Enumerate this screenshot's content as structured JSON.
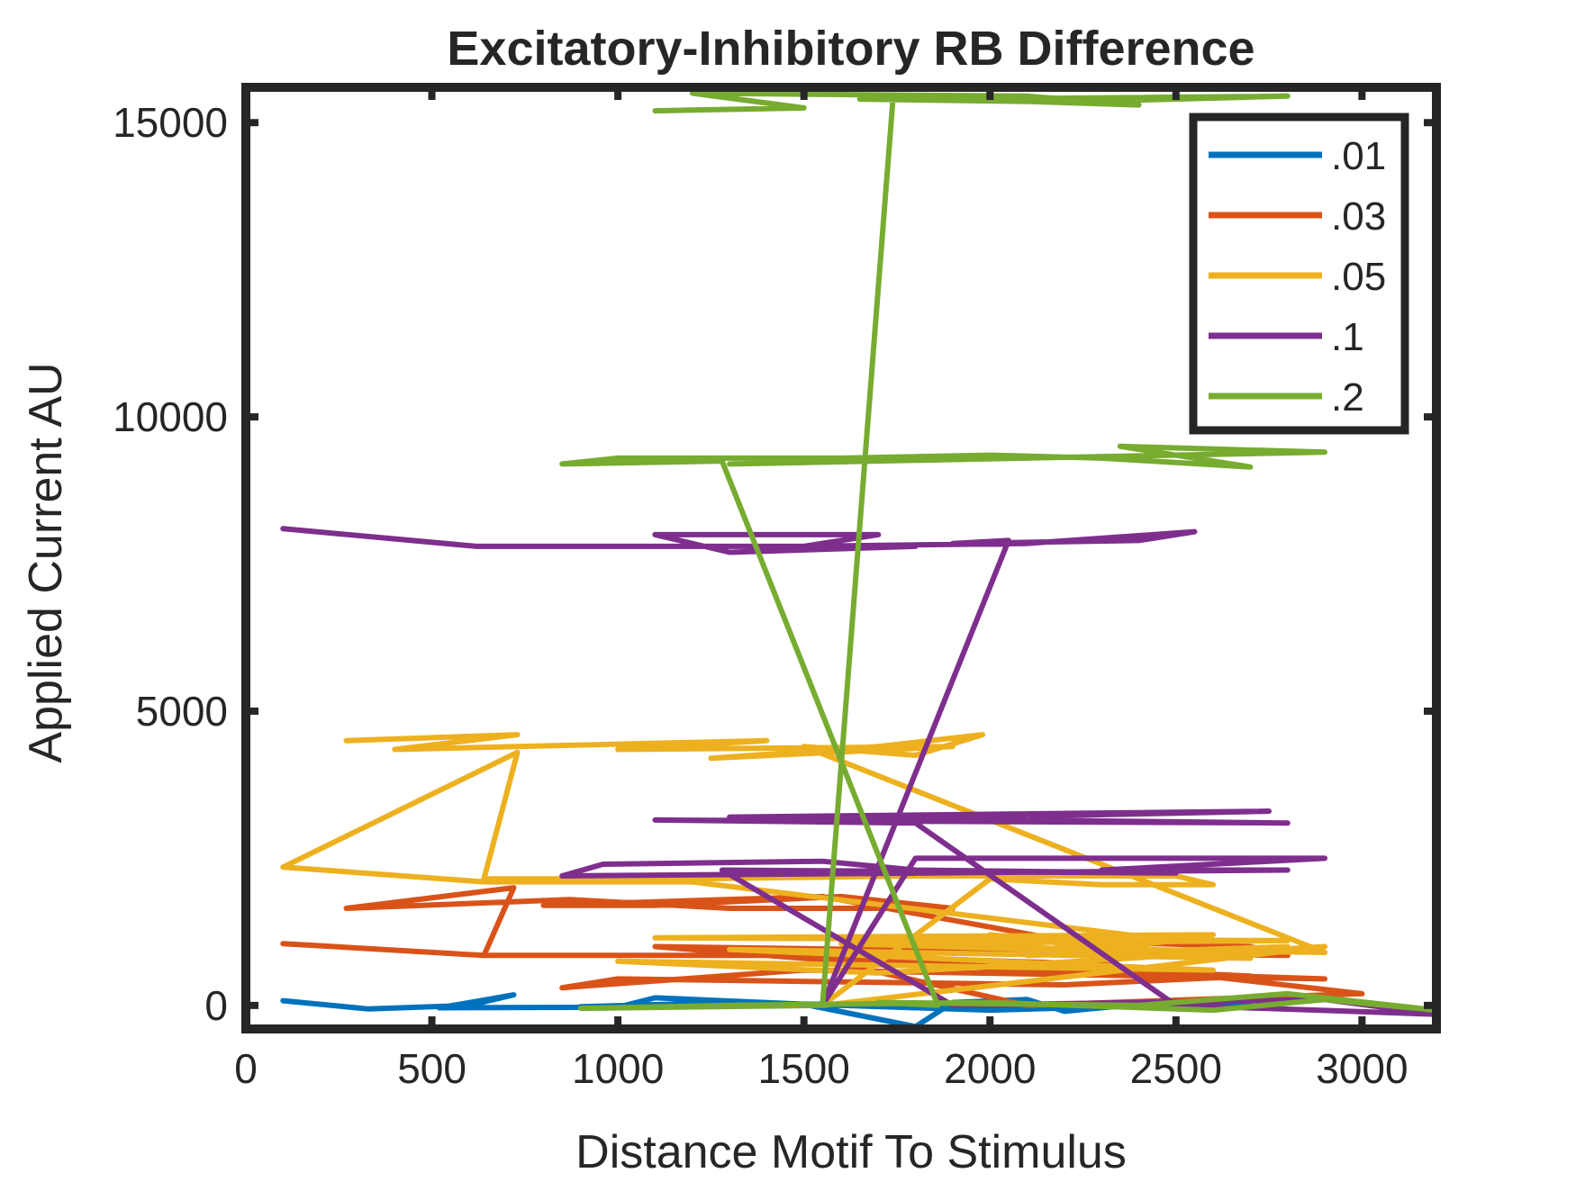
{
  "chart_data": {
    "type": "line",
    "title": "Excitatory-Inhibitory RB Difference",
    "xlabel": "Distance Motif To Stimulus",
    "ylabel": "Applied Current AU",
    "xlim": [
      0,
      3200
    ],
    "ylim": [
      -400,
      15600
    ],
    "x_ticks": [
      0,
      500,
      1000,
      1500,
      2000,
      2500,
      3000
    ],
    "x_tick_labels": [
      "0",
      "500",
      "1000",
      "1500",
      "2000",
      "2500",
      "3000"
    ],
    "y_ticks": [
      0,
      5000,
      10000,
      15000
    ],
    "y_tick_labels": [
      "0",
      "5000",
      "10000",
      "15000"
    ],
    "grid": false,
    "legend_position": "top-right",
    "series": [
      {
        "name": ".01",
        "color": "#0072BD",
        "points": [
          [
            100,
            80
          ],
          [
            330,
            -60
          ],
          [
            600,
            0
          ],
          [
            720,
            180
          ],
          [
            520,
            -40
          ],
          [
            1000,
            -30
          ],
          [
            1100,
            130
          ],
          [
            1500,
            20
          ],
          [
            1800,
            -360
          ],
          [
            1900,
            50
          ],
          [
            2100,
            100
          ],
          [
            2200,
            -100
          ],
          [
            2500,
            80
          ],
          [
            2800,
            120
          ],
          [
            2400,
            0
          ],
          [
            1200,
            30
          ],
          [
            900,
            -20
          ],
          [
            1600,
            0
          ],
          [
            2000,
            -80
          ],
          [
            2700,
            40
          ]
        ]
      },
      {
        "name": ".03",
        "color": "#D95319",
        "points": [
          [
            100,
            1050
          ],
          [
            640,
            850
          ],
          [
            720,
            2000
          ],
          [
            270,
            1650
          ],
          [
            870,
            1800
          ],
          [
            1300,
            1650
          ],
          [
            1900,
            1650
          ],
          [
            1600,
            1850
          ],
          [
            1100,
            1700
          ],
          [
            800,
            1700
          ],
          [
            1550,
            1850
          ],
          [
            2200,
            1100
          ],
          [
            2700,
            1000
          ],
          [
            2800,
            850
          ],
          [
            1100,
            1000
          ],
          [
            1700,
            700
          ],
          [
            2900,
            450
          ],
          [
            1500,
            600
          ],
          [
            850,
            300
          ],
          [
            1000,
            450
          ],
          [
            2200,
            350
          ],
          [
            2700,
            500
          ],
          [
            1300,
            900
          ],
          [
            2300,
            700
          ],
          [
            3000,
            200
          ],
          [
            2100,
            0
          ],
          [
            1500,
            850
          ],
          [
            630,
            850
          ],
          [
            940,
            850
          ]
        ]
      },
      {
        "name": ".05",
        "color": "#EDB120",
        "points": [
          [
            270,
            4500
          ],
          [
            730,
            4600
          ],
          [
            400,
            4350
          ],
          [
            1400,
            4500
          ],
          [
            1000,
            4350
          ],
          [
            1900,
            4400
          ],
          [
            1250,
            4200
          ],
          [
            1700,
            4400
          ],
          [
            1980,
            4600
          ],
          [
            1800,
            4250
          ],
          [
            1500,
            4400
          ],
          [
            2300,
            2400
          ],
          [
            2900,
            900
          ],
          [
            1900,
            1000
          ],
          [
            2600,
            1200
          ],
          [
            1100,
            1150
          ],
          [
            2800,
            1100
          ],
          [
            1600,
            1050
          ],
          [
            2400,
            900
          ],
          [
            2000,
            1200
          ],
          [
            2700,
            800
          ],
          [
            1300,
            950
          ],
          [
            2200,
            700
          ],
          [
            2600,
            600
          ],
          [
            1000,
            750
          ],
          [
            1700,
            550
          ],
          [
            2900,
            1000
          ],
          [
            1550,
            0
          ],
          [
            2000,
            2150
          ],
          [
            2300,
            2050
          ],
          [
            2600,
            2050
          ],
          [
            2500,
            2200
          ],
          [
            1800,
            2200
          ],
          [
            1200,
            2150
          ],
          [
            640,
            2150
          ],
          [
            730,
            4300
          ],
          [
            100,
            2350
          ],
          [
            640,
            2100
          ],
          [
            1200,
            2100
          ],
          [
            2500,
            1100
          ],
          [
            2100,
            850
          ],
          [
            2800,
            1000
          ]
        ]
      },
      {
        "name": ".1",
        "color": "#7E2F8E",
        "points": [
          [
            100,
            8100
          ],
          [
            620,
            7800
          ],
          [
            1000,
            7800
          ],
          [
            1800,
            7800
          ],
          [
            1300,
            7700
          ],
          [
            1100,
            8000
          ],
          [
            1700,
            8000
          ],
          [
            1500,
            7800
          ],
          [
            2100,
            7850
          ],
          [
            2550,
            8050
          ],
          [
            2400,
            7900
          ],
          [
            1900,
            7850
          ],
          [
            2050,
            7900
          ],
          [
            1550,
            0
          ],
          [
            1800,
            2500
          ],
          [
            2900,
            2500
          ],
          [
            2300,
            2300
          ],
          [
            2800,
            2300
          ],
          [
            850,
            2200
          ],
          [
            960,
            2400
          ],
          [
            1550,
            2450
          ],
          [
            1800,
            2300
          ],
          [
            2500,
            2250
          ],
          [
            1280,
            2300
          ],
          [
            1900,
            0
          ],
          [
            2900,
            100
          ],
          [
            3200,
            -150
          ],
          [
            2500,
            0
          ],
          [
            1800,
            3100
          ],
          [
            1100,
            3150
          ],
          [
            2800,
            3100
          ],
          [
            1300,
            3200
          ],
          [
            2750,
            3300
          ],
          [
            2000,
            3200
          ],
          [
            1600,
            3150
          ]
        ]
      },
      {
        "name": ".2",
        "color": "#77AC30",
        "points": [
          [
            1100,
            15200
          ],
          [
            1500,
            15250
          ],
          [
            1200,
            15500
          ],
          [
            2100,
            15450
          ],
          [
            2400,
            15300
          ],
          [
            1900,
            15400
          ],
          [
            2800,
            15450
          ],
          [
            2200,
            15350
          ],
          [
            1650,
            15400
          ],
          [
            1740,
            15450
          ],
          [
            1550,
            0
          ],
          [
            900,
            -50
          ],
          [
            1300,
            0
          ],
          [
            2000,
            50
          ],
          [
            2600,
            -80
          ],
          [
            2900,
            100
          ],
          [
            3200,
            -80
          ],
          [
            2800,
            200
          ],
          [
            2400,
            0
          ],
          [
            1700,
            50
          ],
          [
            1860,
            0
          ],
          [
            1280,
            9250
          ],
          [
            850,
            9200
          ],
          [
            1000,
            9300
          ],
          [
            1600,
            9300
          ],
          [
            2000,
            9350
          ],
          [
            2300,
            9300
          ],
          [
            2700,
            9150
          ],
          [
            2350,
            9500
          ],
          [
            2900,
            9400
          ],
          [
            1300,
            9200
          ]
        ]
      }
    ]
  }
}
